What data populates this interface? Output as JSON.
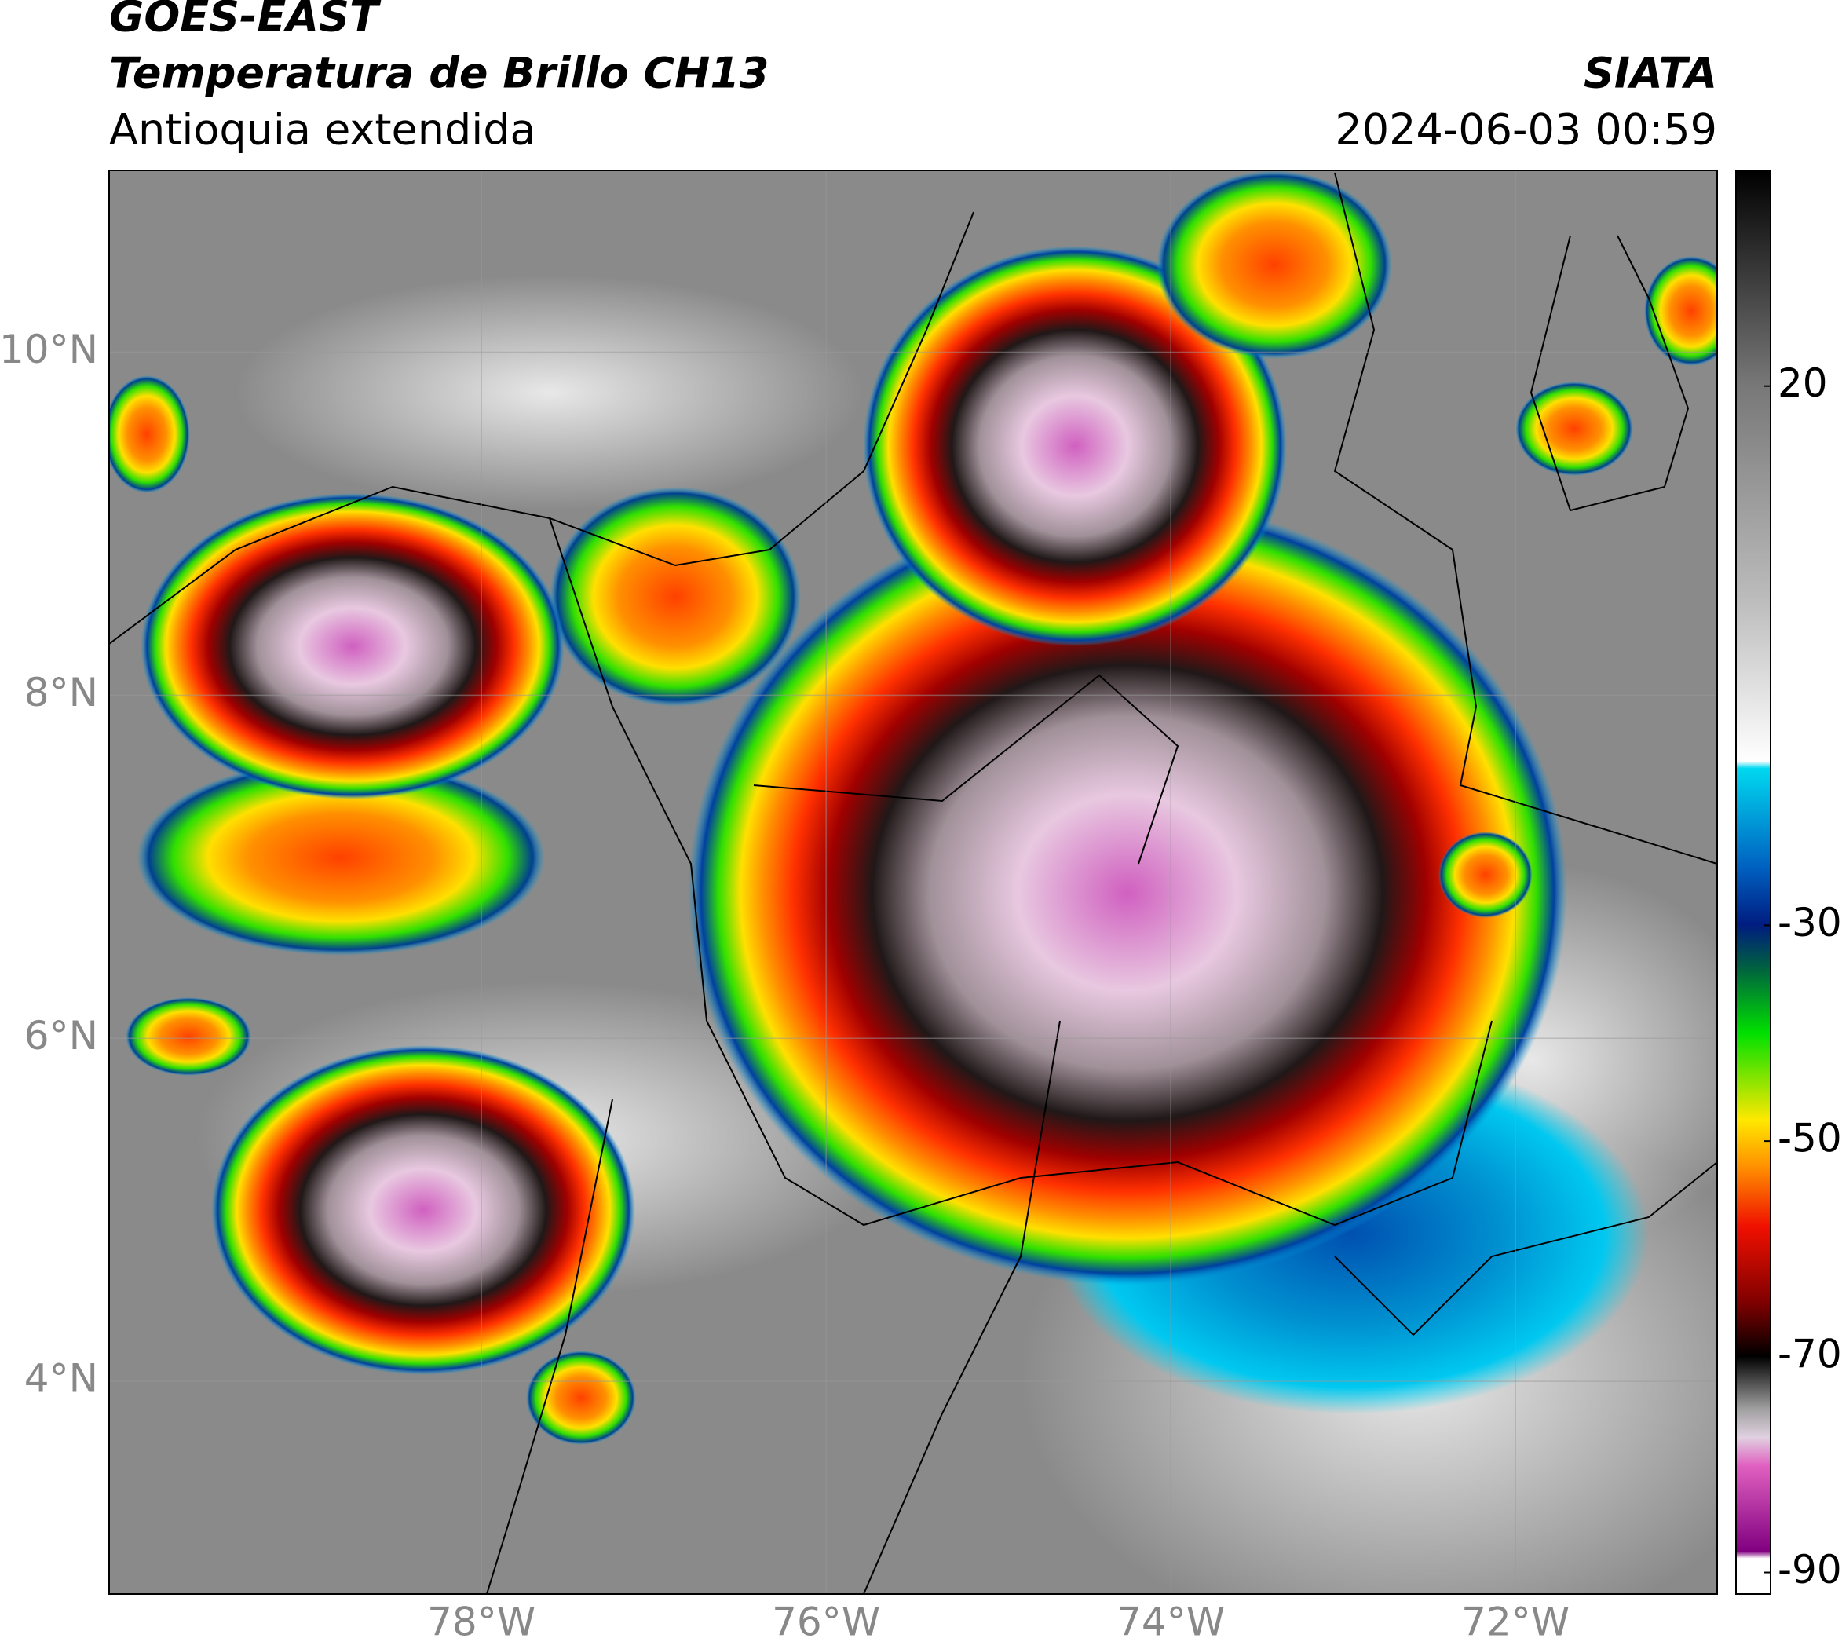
{
  "header": {
    "title": "GOES-EAST",
    "subtitle": "Temperatura de Brillo CH13",
    "region": "Antioquia extendida",
    "source": "SIATA",
    "datetime": "2024-06-03 00:59"
  },
  "chart_data": {
    "type": "map",
    "xlim": [
      -80.16,
      -70.83
    ],
    "ylim": [
      2.76,
      11.06
    ],
    "xticks": [
      {
        "value": -78,
        "label": "78°W"
      },
      {
        "value": -76,
        "label": "76°W"
      },
      {
        "value": -74,
        "label": "74°W"
      },
      {
        "value": -72,
        "label": "72°W"
      }
    ],
    "yticks": [
      {
        "value": 4,
        "label": "4°N"
      },
      {
        "value": 6,
        "label": "6°N"
      },
      {
        "value": 8,
        "label": "8°N"
      },
      {
        "value": 10,
        "label": "10°N"
      }
    ],
    "grid": true,
    "colorbar": {
      "lim": [
        -92,
        40
      ],
      "ticks": [
        20,
        -30,
        -50,
        -70,
        -90
      ]
    }
  }
}
